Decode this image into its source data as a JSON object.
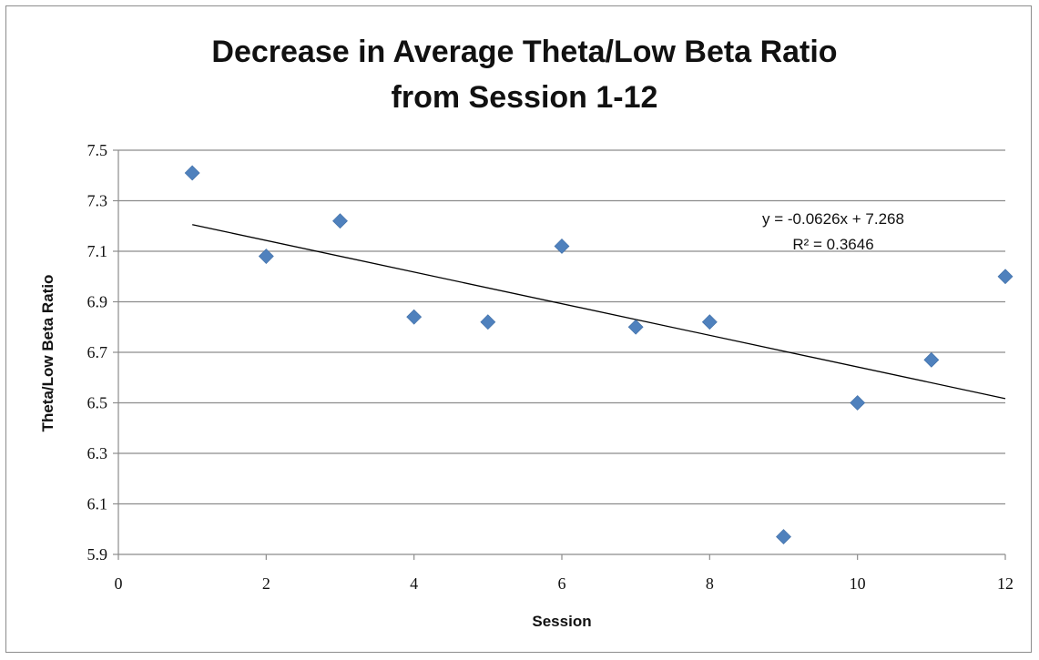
{
  "chart_data": {
    "type": "scatter",
    "title_lines": [
      "Decrease in Average Theta/Low Beta Ratio",
      "from Session 1-12"
    ],
    "xlabel": "Session",
    "ylabel": "Theta/Low Beta Ratio",
    "xlim": [
      0,
      12
    ],
    "ylim": [
      5.9,
      7.5
    ],
    "xticks": [
      0,
      2,
      4,
      6,
      8,
      10,
      12
    ],
    "xtick_labels": [
      "0",
      "2",
      "4",
      "6",
      "8",
      "10",
      "12"
    ],
    "yticks": [
      5.9,
      6.1,
      6.3,
      6.5,
      6.7,
      6.9,
      7.1,
      7.3,
      7.5
    ],
    "ytick_labels": [
      "5.9",
      "6.1",
      "6.3",
      "6.5",
      "6.7",
      "6.9",
      "7.1",
      "7.3",
      "7.5"
    ],
    "grid": "horizontal",
    "legend": "none",
    "marker": "diamond",
    "marker_color": "#4f81bd",
    "trendline_color": "#000000",
    "series": [
      {
        "points": [
          {
            "x": 1,
            "y": 7.41
          },
          {
            "x": 2,
            "y": 7.08
          },
          {
            "x": 3,
            "y": 7.22
          },
          {
            "x": 4,
            "y": 6.84
          },
          {
            "x": 5,
            "y": 6.82
          },
          {
            "x": 6,
            "y": 7.12
          },
          {
            "x": 7,
            "y": 6.8
          },
          {
            "x": 8,
            "y": 6.82
          },
          {
            "x": 9,
            "y": 5.97
          },
          {
            "x": 10,
            "y": 6.5
          },
          {
            "x": 11,
            "y": 6.67
          },
          {
            "x": 12,
            "y": 7.0
          }
        ]
      }
    ],
    "trendline": {
      "type": "linear",
      "slope": -0.0626,
      "intercept": 7.268,
      "x_range": [
        1,
        12
      ],
      "equation_label": "y = -0.0626x + 7.268",
      "r_squared_label": "R² = 0.3646"
    }
  }
}
